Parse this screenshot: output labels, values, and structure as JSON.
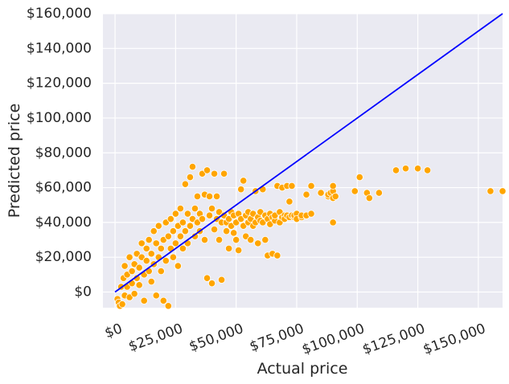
{
  "chart_data": {
    "type": "scatter",
    "title": "",
    "xlabel": "Actual price",
    "ylabel": "Predicted price",
    "xlim": [
      -5000,
      160000
    ],
    "ylim": [
      -9000,
      160000
    ],
    "grid": true,
    "legend": "none",
    "colors": {
      "background": "#eaeaf2",
      "grid": "#ffffff",
      "points": "#ffa500",
      "point_edge": "#ffffff",
      "reference_line": "#0000ff"
    },
    "x_ticks": [
      {
        "value": 0,
        "label": "$0"
      },
      {
        "value": 25000,
        "label": "$25,000"
      },
      {
        "value": 50000,
        "label": "$50,000"
      },
      {
        "value": 75000,
        "label": "$75,000"
      },
      {
        "value": 100000,
        "label": "$100,000"
      },
      {
        "value": 125000,
        "label": "$125,000"
      },
      {
        "value": 150000,
        "label": "$150,000"
      }
    ],
    "y_ticks": [
      {
        "value": 0,
        "label": "$0"
      },
      {
        "value": 20000,
        "label": "$20,000"
      },
      {
        "value": 40000,
        "label": "$40,000"
      },
      {
        "value": 60000,
        "label": "$60,000"
      },
      {
        "value": 80000,
        "label": "$80,000"
      },
      {
        "value": 100000,
        "label": "$100,000"
      },
      {
        "value": 120000,
        "label": "$120,000"
      },
      {
        "value": 140000,
        "label": "$140,000"
      },
      {
        "value": 160000,
        "label": "$160,000"
      }
    ],
    "reference_line": {
      "x": [
        0,
        160000
      ],
      "y": [
        0,
        160000
      ]
    },
    "points": [
      [
        1000,
        -4000
      ],
      [
        1500,
        -6000
      ],
      [
        2000,
        -8000
      ],
      [
        3000,
        -7000
      ],
      [
        2500,
        3000
      ],
      [
        3500,
        8000
      ],
      [
        4000,
        -2000
      ],
      [
        4000,
        15000
      ],
      [
        5000,
        10000
      ],
      [
        5000,
        3000
      ],
      [
        6000,
        -3000
      ],
      [
        6000,
        20000
      ],
      [
        7000,
        12000
      ],
      [
        7000,
        5000
      ],
      [
        8000,
        16000
      ],
      [
        8000,
        -1000
      ],
      [
        9000,
        22000
      ],
      [
        9000,
        8000
      ],
      [
        10000,
        14000
      ],
      [
        10000,
        4000
      ],
      [
        11000,
        20000
      ],
      [
        11000,
        28000
      ],
      [
        12000,
        10000
      ],
      [
        12000,
        -5000
      ],
      [
        13000,
        18000
      ],
      [
        13000,
        25000
      ],
      [
        14000,
        12000
      ],
      [
        14000,
        30000
      ],
      [
        15000,
        22000
      ],
      [
        15000,
        6000
      ],
      [
        16000,
        35000
      ],
      [
        16000,
        16000
      ],
      [
        17000,
        28000
      ],
      [
        17000,
        -2000
      ],
      [
        18000,
        20000
      ],
      [
        18000,
        38000
      ],
      [
        19000,
        25000
      ],
      [
        19000,
        12000
      ],
      [
        20000,
        30000
      ],
      [
        20000,
        -5000
      ],
      [
        21000,
        40000
      ],
      [
        21000,
        18000
      ],
      [
        22000,
        32000
      ],
      [
        22000,
        -8000
      ],
      [
        23000,
        25000
      ],
      [
        23000,
        42000
      ],
      [
        24000,
        35000
      ],
      [
        24000,
        20000
      ],
      [
        25000,
        28000
      ],
      [
        25000,
        45000
      ],
      [
        26000,
        38000
      ],
      [
        26000,
        15000
      ],
      [
        27000,
        32000
      ],
      [
        27000,
        48000
      ],
      [
        28000,
        40000
      ],
      [
        28000,
        25000
      ],
      [
        29000,
        62000
      ],
      [
        29000,
        35000
      ],
      [
        30000,
        45000
      ],
      [
        30000,
        28000
      ],
      [
        31000,
        66000
      ],
      [
        31000,
        38000
      ],
      [
        32000,
        72000
      ],
      [
        32000,
        42000
      ],
      [
        33000,
        48000
      ],
      [
        33000,
        32000
      ],
      [
        34000,
        55000
      ],
      [
        34000,
        40000
      ],
      [
        35000,
        45000
      ],
      [
        35000,
        35000
      ],
      [
        36000,
        68000
      ],
      [
        36000,
        42000
      ],
      [
        37000,
        56000
      ],
      [
        37000,
        30000
      ],
      [
        38000,
        70000
      ],
      [
        38000,
        8000
      ],
      [
        39000,
        44000
      ],
      [
        39000,
        55000
      ],
      [
        40000,
        48000
      ],
      [
        40000,
        5000
      ],
      [
        41000,
        36000
      ],
      [
        41000,
        68000
      ],
      [
        42000,
        42000
      ],
      [
        42000,
        55000
      ],
      [
        43000,
        46000
      ],
      [
        43000,
        30000
      ],
      [
        44000,
        40000
      ],
      [
        44000,
        7000
      ],
      [
        45000,
        68000
      ],
      [
        45000,
        44000
      ],
      [
        46000,
        35000
      ],
      [
        46000,
        40000
      ],
      [
        47000,
        42000
      ],
      [
        47000,
        25000
      ],
      [
        48000,
        46000
      ],
      [
        48000,
        38000
      ],
      [
        49000,
        34000
      ],
      [
        49000,
        44000
      ],
      [
        50000,
        40000
      ],
      [
        50000,
        30000
      ],
      [
        51000,
        45000
      ],
      [
        51000,
        24000
      ],
      [
        52000,
        42000
      ],
      [
        52000,
        59000
      ],
      [
        53000,
        38000
      ],
      [
        53000,
        64000
      ],
      [
        54000,
        44000
      ],
      [
        54000,
        32000
      ],
      [
        55000,
        40000
      ],
      [
        55000,
        46000
      ],
      [
        56000,
        42000
      ],
      [
        56000,
        30000
      ],
      [
        57000,
        45000
      ],
      [
        57000,
        38000
      ],
      [
        58000,
        40000
      ],
      [
        58000,
        58000
      ],
      [
        59000,
        43000
      ],
      [
        59000,
        28000
      ],
      [
        60000,
        46000
      ],
      [
        60000,
        41000
      ],
      [
        61000,
        40000
      ],
      [
        61000,
        59000
      ],
      [
        62000,
        44000
      ],
      [
        62000,
        30000
      ],
      [
        63000,
        42000
      ],
      [
        63000,
        21000
      ],
      [
        64000,
        45000
      ],
      [
        64000,
        39000
      ],
      [
        65000,
        43000
      ],
      [
        65000,
        22000
      ],
      [
        66000,
        41000
      ],
      [
        66000,
        44000
      ],
      [
        67000,
        61000
      ],
      [
        67000,
        21000
      ],
      [
        68000,
        40000
      ],
      [
        68000,
        46000
      ],
      [
        69000,
        43000
      ],
      [
        69000,
        60000
      ],
      [
        70000,
        44000
      ],
      [
        70000,
        42000
      ],
      [
        71000,
        61000
      ],
      [
        71000,
        44000
      ],
      [
        72000,
        43000
      ],
      [
        72000,
        52000
      ],
      [
        73000,
        44000
      ],
      [
        73000,
        61000
      ],
      [
        74000,
        43000
      ],
      [
        74000,
        44000
      ],
      [
        75000,
        45000
      ],
      [
        75000,
        42000
      ],
      [
        77000,
        43000
      ],
      [
        77000,
        44000
      ],
      [
        79000,
        44000
      ],
      [
        79000,
        56000
      ],
      [
        81000,
        45000
      ],
      [
        81000,
        61000
      ],
      [
        85000,
        57000
      ],
      [
        88000,
        55000
      ],
      [
        88000,
        56000
      ],
      [
        89000,
        57000
      ],
      [
        90000,
        58000
      ],
      [
        90000,
        61000
      ],
      [
        90000,
        40000
      ],
      [
        90000,
        54000
      ],
      [
        91000,
        55000
      ],
      [
        99000,
        58000
      ],
      [
        101000,
        66000
      ],
      [
        104000,
        57000
      ],
      [
        105000,
        54000
      ],
      [
        109000,
        57000
      ],
      [
        116000,
        70000
      ],
      [
        120000,
        71000
      ],
      [
        125000,
        71000
      ],
      [
        129000,
        70000
      ],
      [
        155000,
        58000
      ],
      [
        160000,
        58000
      ]
    ]
  }
}
